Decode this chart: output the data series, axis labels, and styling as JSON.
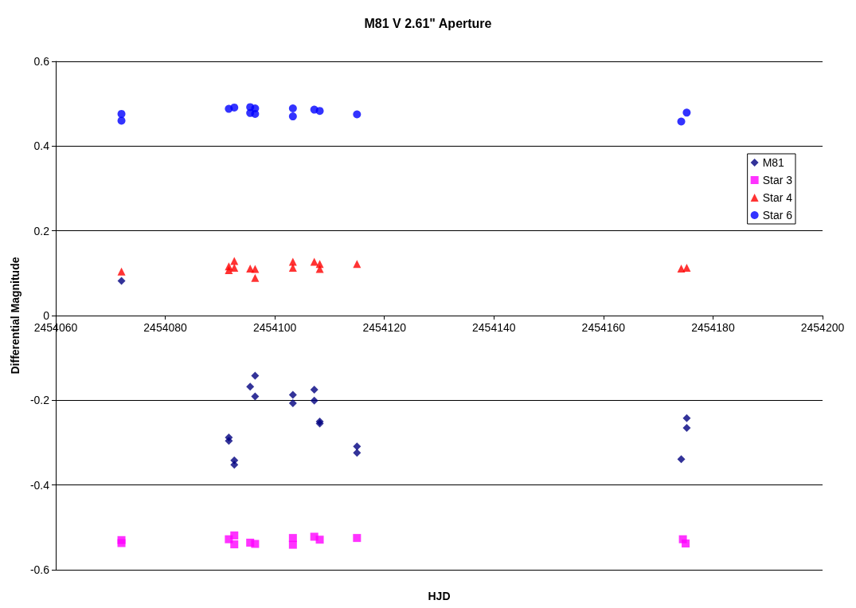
{
  "chart_data": {
    "type": "scatter",
    "title": "M81 V 2.61\" Aperture",
    "xlabel": "HJD",
    "ylabel": "Differential Magnitude",
    "xlim": [
      2454060,
      2454200
    ],
    "xticks": [
      2454060,
      2454080,
      2454100,
      2454120,
      2454140,
      2454160,
      2454180,
      2454200
    ],
    "ylim": [
      -0.6,
      0.6
    ],
    "yticks": [
      -0.6,
      -0.4,
      -0.2,
      0,
      0.2,
      0.4,
      0.6
    ],
    "grid": "y",
    "legend": "right",
    "series": [
      {
        "name": "M81",
        "color": "#000080",
        "marker": "diamond",
        "x": [
          2454072,
          2454091.6,
          2454091.6,
          2454092.6,
          2454092.6,
          2454095.5,
          2454096.4,
          2454096.4,
          2454103.3,
          2454103.3,
          2454107.2,
          2454107.2,
          2454108.2,
          2454108.2,
          2454115,
          2454115,
          2454174.2,
          2454175.2,
          2454175.2
        ],
        "values": [
          0.082,
          -0.288,
          -0.296,
          -0.342,
          -0.352,
          -0.168,
          -0.142,
          -0.191,
          -0.187,
          -0.207,
          -0.175,
          -0.201,
          -0.25,
          -0.255,
          -0.309,
          -0.324,
          -0.339,
          -0.242,
          -0.265
        ]
      },
      {
        "name": "Star 3",
        "color": "#ff00ff",
        "marker": "square",
        "x": [
          2454072,
          2454072,
          2454091.6,
          2454092.6,
          2454092.6,
          2454095.5,
          2454096.4,
          2454103.3,
          2454103.3,
          2454107.2,
          2454108.2,
          2454115,
          2454174.5,
          2454175
        ],
        "values": [
          -0.53,
          -0.537,
          -0.528,
          -0.519,
          -0.54,
          -0.536,
          -0.539,
          -0.525,
          -0.541,
          -0.522,
          -0.529,
          -0.525,
          -0.528,
          -0.538
        ]
      },
      {
        "name": "Star 4",
        "color": "#ff0000",
        "marker": "triangle",
        "x": [
          2454072,
          2454091.6,
          2454091.6,
          2454092.6,
          2454092.6,
          2454095.5,
          2454096.4,
          2454096.4,
          2454103.3,
          2454103.3,
          2454107.2,
          2454108.2,
          2454108.2,
          2454115,
          2454174.2,
          2454175.2
        ],
        "values": [
          0.104,
          0.116,
          0.107,
          0.129,
          0.113,
          0.111,
          0.11,
          0.089,
          0.127,
          0.113,
          0.127,
          0.122,
          0.11,
          0.122,
          0.111,
          0.113
        ]
      },
      {
        "name": "Star 6",
        "color": "#0000ff",
        "marker": "circle",
        "x": [
          2454072,
          2454072,
          2454091.6,
          2454092.6,
          2454095.5,
          2454095.5,
          2454096.4,
          2454096.4,
          2454103.3,
          2454103.3,
          2454107.2,
          2454108.2,
          2454115,
          2454174.2,
          2454175.2
        ],
        "values": [
          0.476,
          0.46,
          0.488,
          0.491,
          0.492,
          0.478,
          0.489,
          0.476,
          0.489,
          0.47,
          0.486,
          0.483,
          0.475,
          0.458,
          0.479
        ]
      }
    ]
  }
}
